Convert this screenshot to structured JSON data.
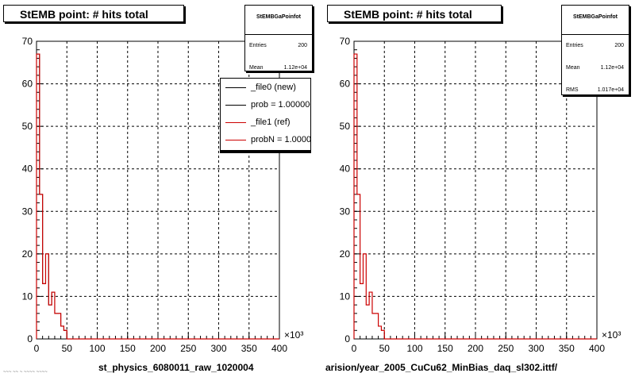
{
  "panels": [
    {
      "title": "StEMB point: # hits total",
      "stats": {
        "title": "StEMBGaPoinfot",
        "rows": [
          {
            "k": "Entries",
            "v": "200"
          },
          {
            "k": "Mean",
            "v": "1.12e+04"
          }
        ]
      },
      "legend": [
        {
          "label": "_file0 (new)",
          "color": "#000000"
        },
        {
          "label": "prob = 1.000000",
          "color": "#000000"
        },
        {
          "label": "_file1 (ref)",
          "color": "#cc0000"
        },
        {
          "label": "probN = 1.000000",
          "color": "#cc0000"
        }
      ],
      "bottom_label": "st_physics_6080011_raw_1020004"
    },
    {
      "title": "StEMB point: # hits total",
      "stats": {
        "title": "StEMBGaPoinfot",
        "rows": [
          {
            "k": "Entries",
            "v": "200"
          },
          {
            "k": "Mean",
            "v": "1.12e+04"
          },
          {
            "k": "RMS",
            "v": "1.017e+04"
          }
        ]
      },
      "bottom_label": "arision/year_2005_CuCu62_MinBias_daq_sl302.ittf/"
    }
  ],
  "footer_text": "~~~ ~~ ~ ~~~~ ~~~~",
  "chart_data": [
    {
      "type": "histogram",
      "title": "StEMB point: # hits total",
      "xlim": [
        0,
        400
      ],
      "ylim": [
        0,
        70
      ],
      "x_multiplier_label": "×10³",
      "xticks": [
        0,
        50,
        100,
        150,
        200,
        250,
        300,
        350,
        400
      ],
      "yticks": [
        0,
        10,
        20,
        30,
        40,
        50,
        60,
        70
      ],
      "grid": true,
      "bin_width": 5,
      "series": [
        {
          "name": "_file0 (new)",
          "color": "#000000",
          "values": [
            67,
            34,
            13,
            20,
            8,
            11,
            6,
            6,
            3,
            2,
            0
          ]
        },
        {
          "name": "_file1 (ref)",
          "color": "#cc0000",
          "values": [
            67,
            34,
            13,
            20,
            8,
            11,
            6,
            6,
            3,
            2,
            0
          ]
        }
      ]
    },
    {
      "type": "histogram",
      "title": "StEMB point: # hits total",
      "xlim": [
        0,
        400
      ],
      "ylim": [
        0,
        70
      ],
      "x_multiplier_label": "×10³",
      "xticks": [
        0,
        50,
        100,
        150,
        200,
        250,
        300,
        350,
        400
      ],
      "yticks": [
        0,
        10,
        20,
        30,
        40,
        50,
        60,
        70
      ],
      "grid": true,
      "bin_width": 5,
      "series": [
        {
          "name": "_file1 (ref)",
          "color": "#cc0000",
          "values": [
            67,
            34,
            13,
            20,
            8,
            11,
            6,
            6,
            3,
            2,
            0
          ]
        }
      ]
    }
  ]
}
